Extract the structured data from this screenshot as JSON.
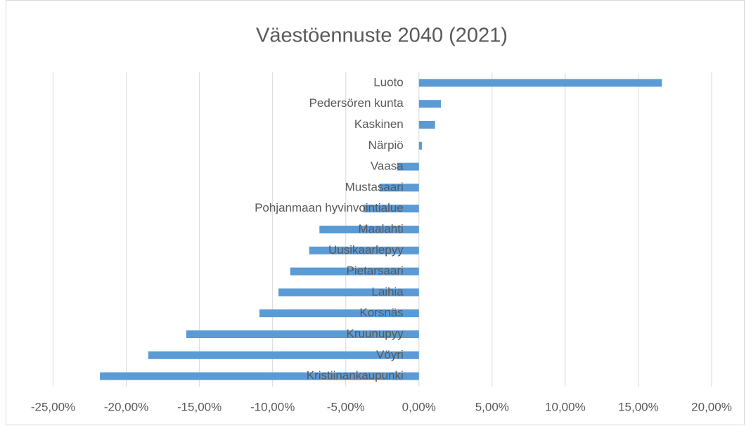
{
  "chart_data": {
    "type": "barh",
    "title": "Väestöennuste 2040 (2021)",
    "categories": [
      "Luoto",
      "Pedersören kunta",
      "Kaskinen",
      "Närpiö",
      "Vaasa",
      "Mustasaari",
      "Pohjanmaan hyvinvointialue",
      "Maalahti",
      "Uusikaarlepyy",
      "Pietarsaari",
      "Laihia",
      "Korsnäs",
      "Kruunupyy",
      "Vöyri",
      "Kristiinankaupunki"
    ],
    "values": [
      16.6,
      1.5,
      1.1,
      0.2,
      -1.5,
      -2.7,
      -3.8,
      -6.8,
      -7.5,
      -8.8,
      -9.6,
      -10.9,
      -15.9,
      -18.5,
      -21.8
    ],
    "color": "#5b9bd5",
    "xlim": [
      -25,
      20
    ],
    "xticks": [
      {
        "value": -25,
        "label": "-25,00%"
      },
      {
        "value": -20,
        "label": "-20,00%"
      },
      {
        "value": -15,
        "label": "-15,00%"
      },
      {
        "value": -10,
        "label": "-10,00%"
      },
      {
        "value": -5,
        "label": "-5,00%"
      },
      {
        "value": 0,
        "label": "0,00%"
      },
      {
        "value": 5,
        "label": "5,00%"
      },
      {
        "value": 10,
        "label": "10,00%"
      },
      {
        "value": 15,
        "label": "15,00%"
      },
      {
        "value": 20,
        "label": "20,00%"
      }
    ],
    "grid": true
  }
}
